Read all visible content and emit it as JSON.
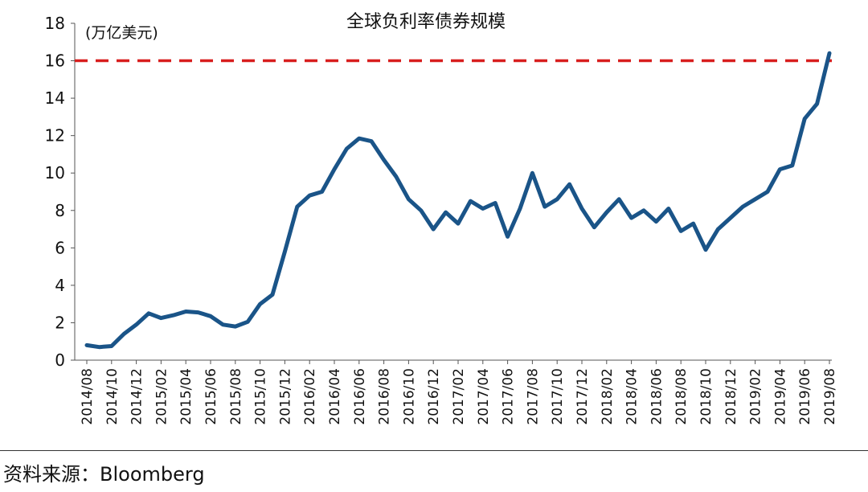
{
  "chart_data": {
    "type": "line",
    "title": "全球负利率债券规模",
    "unit_label": "(万亿美元)",
    "ylim": [
      0,
      18
    ],
    "yticks": [
      "0",
      "2",
      "4",
      "6",
      "8",
      "10",
      "12",
      "14",
      "16",
      "18"
    ],
    "xticks": [
      "2014/08",
      "2014/10",
      "2014/12",
      "2015/02",
      "2015/04",
      "2015/06",
      "2015/08",
      "2015/10",
      "2015/12",
      "2016/02",
      "2016/04",
      "2016/06",
      "2016/08",
      "2016/10",
      "2016/12",
      "2017/02",
      "2017/04",
      "2017/06",
      "2017/08",
      "2017/10",
      "2017/12",
      "2018/02",
      "2018/04",
      "2018/06",
      "2018/08",
      "2018/10",
      "2018/12",
      "2019/02",
      "2019/04",
      "2019/06",
      "2019/08"
    ],
    "reference_line": {
      "value": 16,
      "color": "#d81e1e",
      "style": "dashed"
    },
    "line_color": "#1a5488",
    "grid": false,
    "series": [
      {
        "x": [
          "2014/08",
          "2014/09",
          "2014/10",
          "2014/11",
          "2014/12",
          "2015/01",
          "2015/02",
          "2015/03",
          "2015/04",
          "2015/05",
          "2015/06",
          "2015/07",
          "2015/08",
          "2015/09",
          "2015/10",
          "2015/11",
          "2015/12",
          "2016/01",
          "2016/02",
          "2016/03",
          "2016/04",
          "2016/05",
          "2016/06",
          "2016/07",
          "2016/08",
          "2016/09",
          "2016/10",
          "2016/11",
          "2016/12",
          "2017/01",
          "2017/02",
          "2017/03",
          "2017/04",
          "2017/05",
          "2017/06",
          "2017/07",
          "2017/08",
          "2017/09",
          "2017/10",
          "2017/11",
          "2017/12",
          "2018/01",
          "2018/02",
          "2018/03",
          "2018/04",
          "2018/05",
          "2018/06",
          "2018/07",
          "2018/08",
          "2018/09",
          "2018/10",
          "2018/11",
          "2018/12",
          "2019/01",
          "2019/02",
          "2019/03",
          "2019/04",
          "2019/05",
          "2019/06",
          "2019/07",
          "2019/08"
        ],
        "values": [
          0.8,
          0.7,
          0.75,
          1.4,
          1.9,
          2.5,
          2.25,
          2.4,
          2.6,
          2.55,
          2.35,
          1.9,
          1.8,
          2.05,
          3.0,
          3.5,
          5.8,
          8.2,
          8.8,
          9.0,
          10.2,
          11.3,
          11.85,
          11.7,
          10.7,
          9.8,
          8.6,
          8.0,
          7.0,
          7.9,
          7.3,
          8.5,
          8.1,
          8.4,
          6.6,
          8.1,
          10.0,
          8.2,
          8.6,
          9.4,
          8.1,
          7.1,
          7.9,
          8.6,
          7.6,
          8.0,
          7.4,
          8.1,
          6.9,
          7.3,
          5.9,
          7.0,
          7.6,
          8.2,
          8.6,
          9.0,
          10.2,
          10.4,
          12.9,
          13.7,
          16.4
        ]
      }
    ]
  },
  "source_text": "资料来源：Bloomberg"
}
